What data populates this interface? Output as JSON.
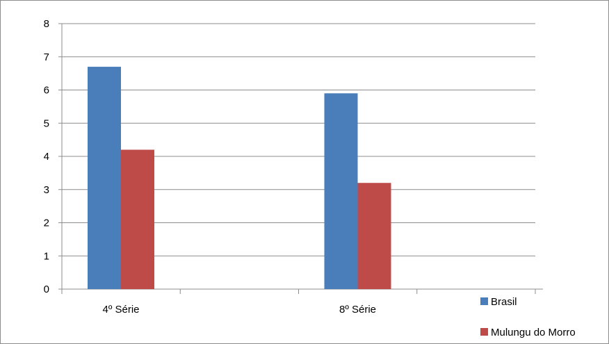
{
  "chart_data": {
    "type": "bar",
    "title": "",
    "xlabel": "",
    "ylabel": "",
    "categories": [
      "4º Série",
      "8º Série"
    ],
    "series": [
      {
        "name": "Brasil",
        "values": [
          6.7,
          5.9
        ],
        "color": "#4a7ebb"
      },
      {
        "name": "Mulungu do Morro",
        "values": [
          4.2,
          3.2
        ],
        "color": "#be4b48"
      }
    ],
    "ylim": [
      0,
      8
    ],
    "yticks": [
      0,
      1,
      2,
      3,
      4,
      5,
      6,
      7,
      8
    ],
    "grid": true,
    "legend_position": "bottom-right"
  }
}
